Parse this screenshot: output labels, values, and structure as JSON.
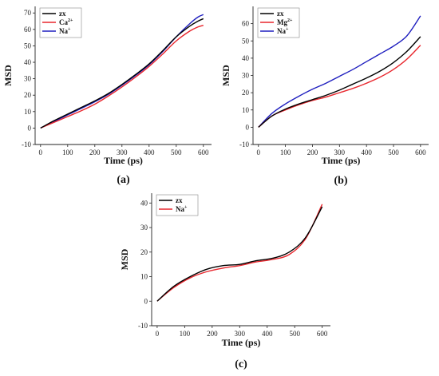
{
  "chart_data": [
    {
      "type": "line",
      "panel_label": "(a)",
      "xlabel": "Time (ps)",
      "ylabel": "MSD",
      "xlim": [
        -20,
        630
      ],
      "ylim": [
        -10,
        74
      ],
      "xticks": [
        0,
        100,
        200,
        300,
        400,
        500,
        600
      ],
      "yticks": [
        -10,
        0,
        10,
        20,
        30,
        40,
        50,
        60,
        70
      ],
      "legend_position": "top-left",
      "colors": {
        "zx": "#000000",
        "Ca2+": "#e8262d",
        "Na+": "#1f1fbf"
      },
      "series": [
        {
          "name": "zx",
          "base": "zx",
          "sup": "",
          "color": "#000000",
          "x": [
            0,
            50,
            100,
            150,
            200,
            250,
            300,
            350,
            400,
            450,
            500,
            550,
            580,
            600
          ],
          "y": [
            0,
            4.5,
            8.5,
            12.5,
            16.5,
            21,
            26.5,
            32.5,
            39,
            47,
            55.5,
            62,
            65,
            66.5
          ]
        },
        {
          "name": "Ca2+",
          "base": "Ca",
          "sup": "2+",
          "color": "#e8262d",
          "x": [
            0,
            50,
            100,
            150,
            200,
            250,
            300,
            350,
            400,
            450,
            500,
            550,
            580,
            600
          ],
          "y": [
            0,
            3.5,
            7,
            10.5,
            14.5,
            19.5,
            25,
            31,
            37.5,
            45,
            53,
            59,
            61.5,
            62.5
          ]
        },
        {
          "name": "Na+",
          "base": "Na",
          "sup": "+",
          "color": "#1f1fbf",
          "x": [
            0,
            50,
            100,
            150,
            200,
            250,
            300,
            350,
            400,
            450,
            500,
            550,
            580,
            600
          ],
          "y": [
            0,
            4,
            8,
            12,
            16,
            20.5,
            26,
            32,
            38.5,
            46.5,
            55.5,
            63.5,
            67.5,
            69
          ]
        }
      ]
    },
    {
      "type": "line",
      "panel_label": "(b)",
      "xlabel": "Time (ps)",
      "ylabel": "MSD",
      "xlim": [
        -20,
        630
      ],
      "ylim": [
        -10,
        70
      ],
      "xticks": [
        0,
        100,
        200,
        300,
        400,
        500,
        600
      ],
      "yticks": [
        -10,
        0,
        10,
        20,
        30,
        40,
        50,
        60
      ],
      "legend_position": "top-left",
      "colors": {
        "zx": "#000000",
        "Mg2+": "#e8262d",
        "Na+": "#1f1fbf"
      },
      "series": [
        {
          "name": "zx",
          "base": "zx",
          "sup": "",
          "color": "#000000",
          "x": [
            0,
            50,
            100,
            150,
            200,
            250,
            300,
            350,
            400,
            450,
            500,
            550,
            600
          ],
          "y": [
            0,
            6.5,
            10.5,
            13.5,
            16,
            18.5,
            21.5,
            25,
            28.5,
            32.5,
            37.5,
            44,
            52.5
          ]
        },
        {
          "name": "Mg2+",
          "base": "Mg",
          "sup": "2+",
          "color": "#e8262d",
          "x": [
            0,
            50,
            100,
            150,
            200,
            250,
            300,
            350,
            400,
            450,
            500,
            550,
            600
          ],
          "y": [
            0,
            6.5,
            10,
            13,
            15.5,
            17.5,
            20,
            22.5,
            25.5,
            29,
            33.5,
            39.5,
            47.5
          ]
        },
        {
          "name": "Na+",
          "base": "Na",
          "sup": "+",
          "color": "#1f1fbf",
          "x": [
            0,
            50,
            100,
            150,
            200,
            250,
            300,
            350,
            400,
            450,
            500,
            550,
            600
          ],
          "y": [
            0,
            8,
            13.5,
            18,
            22,
            25.5,
            29.5,
            33.5,
            38,
            42.5,
            47,
            53,
            64.5
          ]
        }
      ]
    },
    {
      "type": "line",
      "panel_label": "(c)",
      "xlabel": "Time (ps)",
      "ylabel": "MSD",
      "xlim": [
        -20,
        630
      ],
      "ylim": [
        -10,
        44
      ],
      "xticks": [
        0,
        100,
        200,
        300,
        400,
        500,
        600
      ],
      "yticks": [
        -10,
        0,
        10,
        20,
        30,
        40
      ],
      "legend_position": "top-left",
      "colors": {
        "zx": "#000000",
        "Na+": "#e8262d"
      },
      "series": [
        {
          "name": "zx",
          "base": "zx",
          "sup": "",
          "color": "#000000",
          "x": [
            0,
            60,
            120,
            180,
            240,
            300,
            360,
            420,
            480,
            540,
            600
          ],
          "y": [
            0,
            6,
            10,
            13,
            14.5,
            15,
            16.5,
            17.5,
            20,
            26,
            38.5
          ]
        },
        {
          "name": "Na+",
          "base": "Na",
          "sup": "+",
          "color": "#e8262d",
          "x": [
            0,
            60,
            120,
            180,
            240,
            300,
            360,
            420,
            480,
            540,
            600
          ],
          "y": [
            0,
            5.5,
            9.5,
            12,
            13.5,
            14.5,
            16,
            17,
            19,
            25.5,
            39.5
          ]
        }
      ]
    }
  ]
}
